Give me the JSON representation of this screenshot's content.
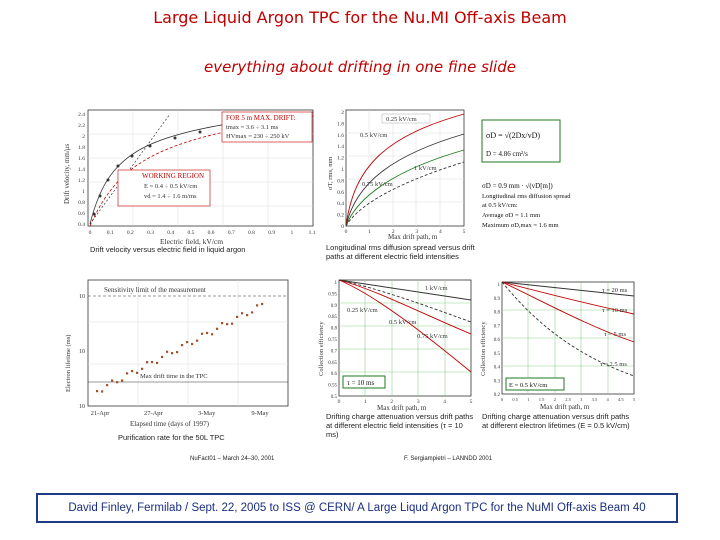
{
  "slide": {
    "title": "Large Liquid Argon TPC for the Nu.MI Off-axis Beam",
    "subtitle": "everything about drifting in one fine slide",
    "footer": "David Finley, Fermilab / Sept. 22, 2005 to ISS @ CERN/ A Large Liqud Argon TPC for the NuMI Off-axis Beam 40"
  },
  "panels": {
    "drift_velocity": {
      "ylabel": "Drift velocity, mm/μs",
      "xlabel": "Electric field, kV/cm",
      "caption": "Drift velocity versus electric field in liquid argon",
      "box_title": "FOR 5 m MAX. DRIFT:",
      "box_line1": "tmax = 3.6 ÷ 3.1 ms",
      "box_line2": "HVmax = 230 ÷ 250 kV",
      "region_title": "WORKING REGION",
      "region_line1": "E = 0.4 ÷ 0.5 kV/cm",
      "region_line2": "vd = 1.4 ÷ 1.6 m/ms",
      "yticks": [
        "2.4",
        "2.2",
        "2",
        "1.8",
        "1.6",
        "1.4",
        "1.2",
        "1",
        "0.8",
        "0.6",
        "0.4"
      ],
      "xticks": [
        "0",
        "0.1",
        "0.2",
        "0.3",
        "0.4",
        "0.5",
        "0.6",
        "0.7",
        "0.8",
        "0.9",
        "1",
        "1.1"
      ]
    },
    "diffusion": {
      "ylabel": "σT, rms, mm",
      "xlabel": "Max drift path, m",
      "caption": "Longitudinal rms diffusion spread versus drift paths at different electric field intensities",
      "labels": [
        "0.25 kV/cm",
        "0.5 kV/cm",
        "1 kV/cm",
        "0.75 kV/cm"
      ],
      "yticks": [
        "2",
        "1.8",
        "1.6",
        "1.4",
        "1.2",
        "1",
        "0.8",
        "0.6",
        "0.4",
        "0.2",
        "0"
      ],
      "xticks": [
        "0",
        "1",
        "2",
        "3",
        "4",
        "5"
      ]
    },
    "formula": {
      "line1": "σD = √(2Dx/vD)",
      "line2": "D = 4.86 cm²/s",
      "line3": "σD = 0.9 mm · √(vD[m])",
      "line4": "Longitudinal rms diffusion spread",
      "line5": "at 0.5 kV/cm:",
      "line6": "Average    σD = 1.1 mm",
      "line7": "Maximum  σD,max = 1.6 mm"
    },
    "purification": {
      "ylabel": "Electron lifetime (ms)",
      "xlabel": "Elapsed time (days of 1997)",
      "caption": "Purification rate for the 50L TPC",
      "note1": "Sensitivity limit of the measurement",
      "note2": "Max drift time in the TPC",
      "yticks": [
        "10",
        "10",
        "10"
      ],
      "xticks": [
        "21-Apr",
        "27-Apr",
        "3-May",
        "9-May"
      ],
      "source": "NuFact01 – March 24–30, 2001"
    },
    "attenuation_field": {
      "ylabel": "Collection efficiency",
      "xlabel": "Max drift path, m",
      "caption": "Drifting charge attenuation versus drift paths at different electric field intensities (τ = 10 ms)",
      "labels": [
        "1 kV/cm",
        "0.25 kV/cm",
        "0.5 kV/cm",
        "0.75 kV/cm"
      ],
      "tau": "τ = 10 ms",
      "yticks": [
        "1",
        "0.95",
        "0.9",
        "0.85",
        "0.8",
        "0.75",
        "0.7",
        "0.65",
        "0.6",
        "0.55",
        "0.5"
      ],
      "xticks": [
        "0",
        "1",
        "2",
        "3",
        "4",
        "5"
      ]
    },
    "attenuation_lifetime": {
      "ylabel": "Collection efficiency",
      "xlabel": "Max drift path, m",
      "caption": "Drifting charge attenuation versus drift paths at different electron lifetimes (E = 0.5 kV/cm)",
      "labels": [
        "τ = 20 ms",
        "τ = 10 ms",
        "τ = 5 ms",
        "τ = 2.5 ms"
      ],
      "field": "E = 0.5 kV/cm",
      "yticks": [
        "1",
        "0.9",
        "0.8",
        "0.7",
        "0.6",
        "0.5",
        "0.4",
        "0.3",
        "0.2"
      ],
      "xticks": [
        "0",
        "0.5",
        "1",
        "1.5",
        "2",
        "2.5",
        "3",
        "3.5",
        "4",
        "4.5",
        "5"
      ],
      "source": "F. Sergiampietri – LANNDD 2001"
    }
  }
}
